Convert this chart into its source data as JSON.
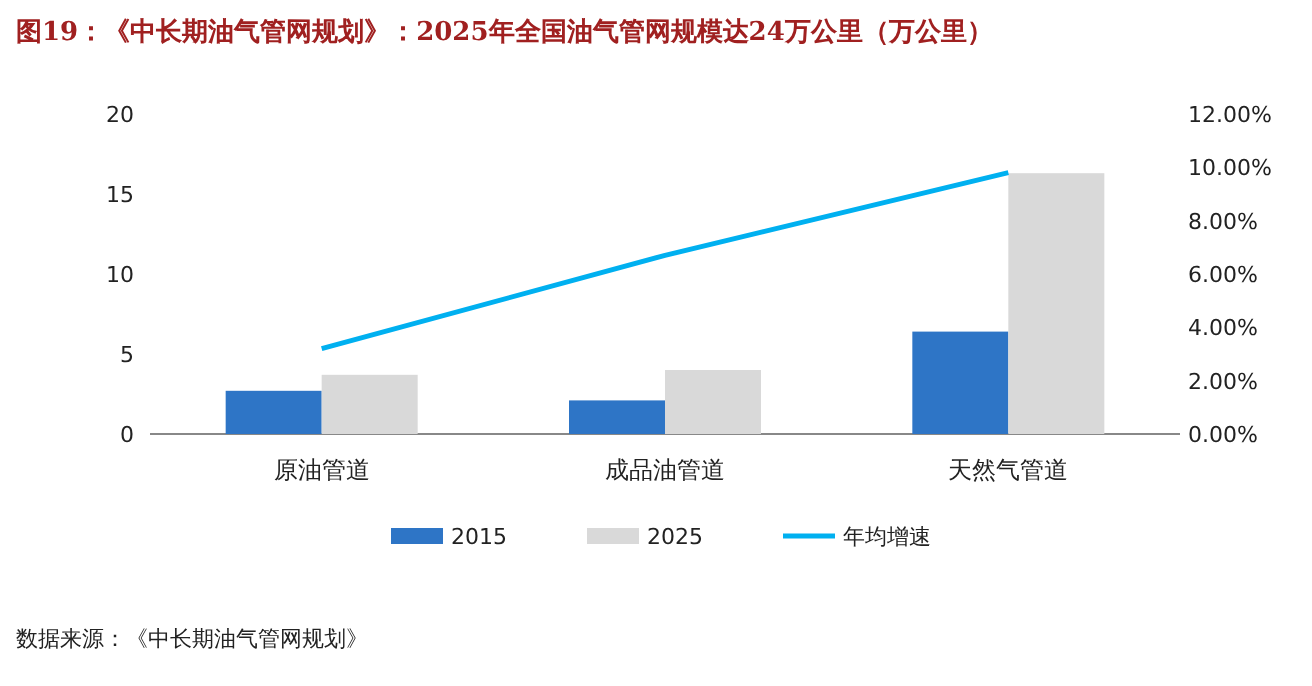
{
  "chart_data": {
    "type": "bar",
    "title": "图19：《中长期油气管网规划》：2025年全国油气管网规模达24万公里（万公里）",
    "categories": [
      "原油管道",
      "成品油管道",
      "天然气管道"
    ],
    "series": [
      {
        "name": "2015",
        "color": "#2e75c6",
        "values": [
          2.7,
          2.1,
          6.4
        ]
      },
      {
        "name": "2025",
        "color": "#d9d9d9",
        "values": [
          3.7,
          4.0,
          16.3
        ]
      },
      {
        "name": "年均增速",
        "color": "#00b0f0",
        "type": "line",
        "axis": "y2",
        "values": [
          3.2,
          6.7,
          9.8
        ]
      }
    ],
    "ylim": [
      0,
      20
    ],
    "yticks": [
      0,
      5,
      10,
      15,
      20
    ],
    "y2lim": [
      0,
      12
    ],
    "y2ticks": [
      {
        "value": 0,
        "label": "0.00%"
      },
      {
        "value": 2,
        "label": "2.00%"
      },
      {
        "value": 4,
        "label": "4.00%"
      },
      {
        "value": 6,
        "label": "6.00%"
      },
      {
        "value": 8,
        "label": "8.00%"
      },
      {
        "value": 10,
        "label": "10.00%"
      },
      {
        "value": 12,
        "label": "12.00%"
      }
    ],
    "legend": "bottom",
    "annotations": [
      "数据来源：《中长期油气管网规划》"
    ]
  }
}
